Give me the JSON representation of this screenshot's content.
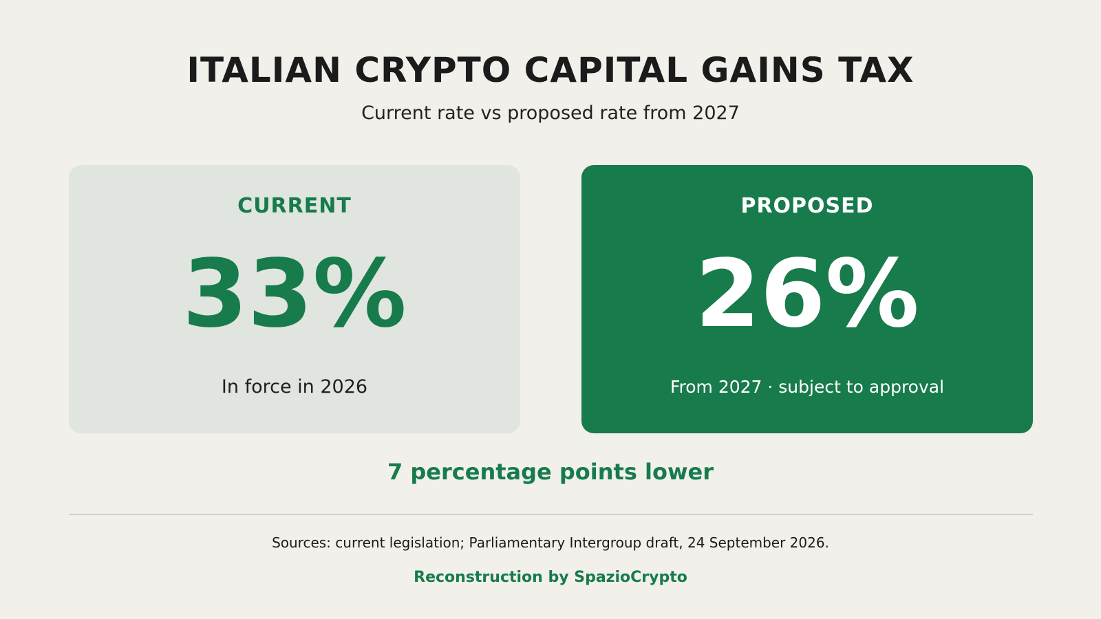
{
  "header": {
    "title": "ITALIAN CRYPTO CAPITAL GAINS TAX",
    "subtitle": "Current rate vs proposed rate from 2027"
  },
  "cards": [
    {
      "label": "CURRENT",
      "value": "33%",
      "note": "In force in 2026",
      "background": "#e0e5df",
      "accent": "#177b4c"
    },
    {
      "label": "PROPOSED",
      "value": "26%",
      "note": "From 2027 · subject to approval",
      "background": "#177b4c",
      "accent": "#ffffff"
    }
  ],
  "difference": "7 percentage points lower",
  "footer": {
    "sources": "Sources: current legislation; Parliamentary Intergroup draft, 24 September 2026.",
    "credit": "Reconstruction by SpazioCrypto"
  },
  "colors": {
    "background": "#f1f0eb",
    "brand_green": "#177b4c",
    "text_dark": "#1a1a1a",
    "divider": "#cfcfcb"
  }
}
